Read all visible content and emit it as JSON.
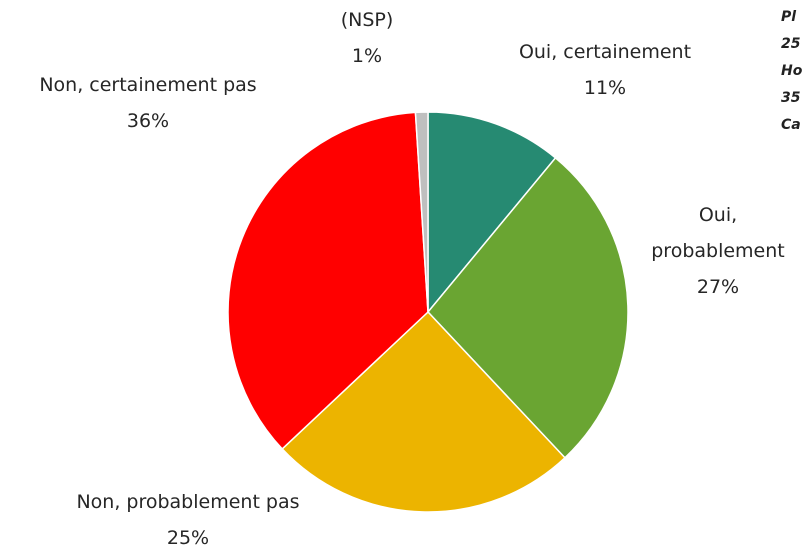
{
  "chart_data": {
    "type": "pie",
    "categories": [
      "Oui, certainement",
      "Oui,\nprobablement",
      "Non, probablement pas",
      "Non, certainement pas",
      "(NSP)"
    ],
    "values": [
      11,
      27,
      25,
      36,
      1
    ],
    "value_labels": [
      "11%",
      "27%",
      "25%",
      "36%",
      "1%"
    ],
    "colors": [
      "#268a72",
      "#6aa532",
      "#ecb400",
      "#ff0000",
      "#bfbfbf"
    ],
    "annotations": [
      "Pl",
      "25",
      "Ho",
      "35",
      "Ca"
    ]
  }
}
